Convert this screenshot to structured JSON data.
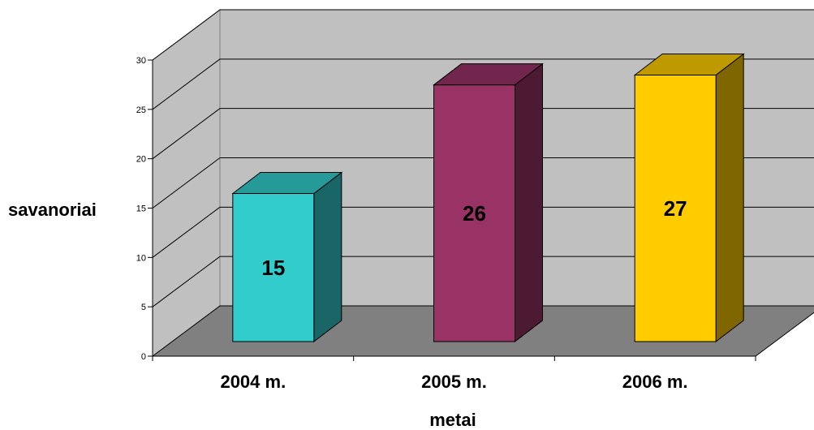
{
  "chart_data": {
    "type": "bar",
    "categories": [
      "2004 m.",
      "2005 m.",
      "2006 m."
    ],
    "values": [
      15,
      26,
      27
    ],
    "data_labels": [
      "15",
      "26",
      "27"
    ],
    "bar_colors": [
      "#33CCCC",
      "#993366",
      "#FFCC00"
    ],
    "title": "",
    "xlabel": "metai",
    "ylabel": "savanoriai",
    "ylim": [
      0,
      30
    ],
    "yticks": [
      "0",
      "5",
      "10",
      "15",
      "20",
      "25",
      "30"
    ],
    "grid": true,
    "legend": "none",
    "style": "3d-column"
  },
  "colors": {
    "back_wall": "#C0C0C0",
    "side_wall": "#C0C0C0",
    "floor": "#808080",
    "gridline": "#000000",
    "outline": "#000000"
  }
}
